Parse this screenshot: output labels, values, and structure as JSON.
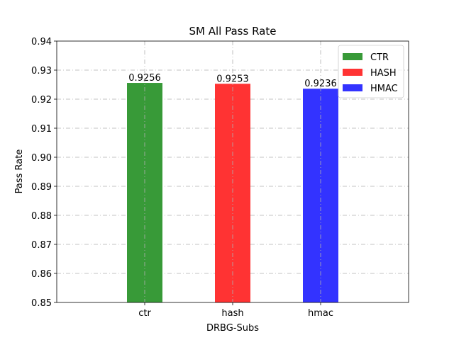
{
  "chart_data": {
    "type": "bar",
    "title": "SM All Pass Rate",
    "xlabel": "DRBG-Subs",
    "ylabel": "Pass Rate",
    "categories": [
      "ctr",
      "hash",
      "hmac"
    ],
    "series": [
      {
        "name": "CTR",
        "category": "ctr",
        "value": 0.9256,
        "label": "0.9256",
        "color": "#389a38"
      },
      {
        "name": "HASH",
        "category": "hash",
        "value": 0.9253,
        "label": "0.9253",
        "color": "#ff3333"
      },
      {
        "name": "HMAC",
        "category": "hmac",
        "value": 0.9236,
        "label": "0.9236",
        "color": "#3333ff"
      }
    ],
    "ylim": [
      0.85,
      0.94
    ],
    "yticks": [
      "0.85",
      "0.86",
      "0.87",
      "0.88",
      "0.89",
      "0.90",
      "0.91",
      "0.92",
      "0.93",
      "0.94"
    ],
    "grid": true,
    "legend_position": "top-right"
  }
}
